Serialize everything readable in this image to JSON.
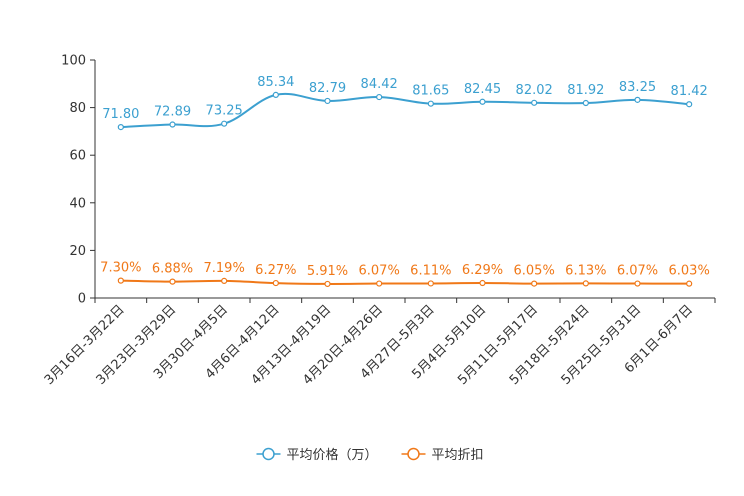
{
  "chart_data": {
    "type": "line",
    "title": "",
    "xlabel": "",
    "ylabel": "",
    "ylim": [
      0,
      100
    ],
    "yticks": [
      0,
      20,
      40,
      60,
      80,
      100
    ],
    "categories": [
      "3月16日-3月22日",
      "3月23日-3月29日",
      "3月30日-4月5日",
      "4月6日-4月12日",
      "4月13日-4月19日",
      "4月20日-4月26日",
      "4月27日-5月3日",
      "5月4日-5月10日",
      "5月11日-5月17日",
      "5月18日-5月24日",
      "5月25日-5月31日",
      "6月1日-6月7日"
    ],
    "series": [
      {
        "name": "平均价格（万）",
        "color": "#3ca0d0",
        "values": [
          71.8,
          72.89,
          73.25,
          85.34,
          82.79,
          84.42,
          81.65,
          82.45,
          82.02,
          81.92,
          83.25,
          81.42
        ],
        "labels": [
          "71.80",
          "72.89",
          "73.25",
          "85.34",
          "82.79",
          "84.42",
          "81.65",
          "82.45",
          "82.02",
          "81.92",
          "83.25",
          "81.42"
        ]
      },
      {
        "name": "平均折扣",
        "color": "#f07818",
        "values": [
          7.3,
          6.88,
          7.19,
          6.27,
          5.91,
          6.07,
          6.11,
          6.29,
          6.05,
          6.13,
          6.07,
          6.03
        ],
        "labels": [
          "7.30%",
          "6.88%",
          "7.19%",
          "6.27%",
          "5.91%",
          "6.07%",
          "6.11%",
          "6.29%",
          "6.05%",
          "6.13%",
          "6.07%",
          "6.03%"
        ]
      }
    ],
    "legend_position": "bottom-center"
  }
}
